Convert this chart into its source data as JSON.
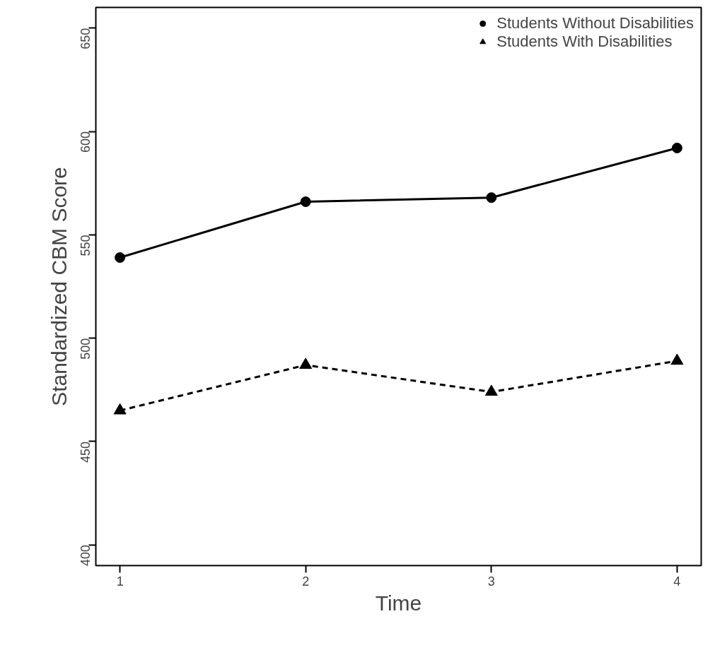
{
  "chart_data": {
    "type": "line",
    "xlabel": "Time",
    "ylabel": "Standardized CBM Score",
    "x": [
      1,
      2,
      3,
      4
    ],
    "series": [
      {
        "name": "Students Without Disabilities",
        "color": "#000000",
        "values": [
          539,
          566,
          568,
          592
        ],
        "marker": "circle",
        "line_style": "solid"
      },
      {
        "name": "Students With Disabilities",
        "color": "#000000",
        "values": [
          465,
          487,
          474,
          489
        ],
        "marker": "triangle",
        "line_style": "dashed"
      }
    ],
    "xlim": [
      0.87,
      4.13
    ],
    "ylim": [
      390,
      660
    ],
    "xticks": [
      1,
      2,
      3,
      4
    ],
    "yticks": [
      400,
      450,
      500,
      550,
      600,
      650
    ],
    "grid": false,
    "legend": "top right"
  }
}
